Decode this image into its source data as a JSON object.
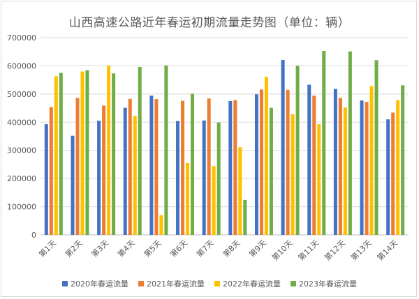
{
  "chart_data": {
    "type": "bar",
    "title": "山西高速公路近年春运初期流量走势图（单位：辆）",
    "categories": [
      "第1天",
      "第2天",
      "第3天",
      "第4天",
      "第5天",
      "第6天",
      "第7天",
      "第8天",
      "第9天",
      "第10天",
      "第11天",
      "第12天",
      "第13天",
      "第14天"
    ],
    "ylim": [
      0,
      700000
    ],
    "yticks": [
      0,
      100000,
      200000,
      300000,
      400000,
      500000,
      600000,
      700000
    ],
    "ytick_labels": [
      "0",
      "100000",
      "200000",
      "300000",
      "400000",
      "500000",
      "600000",
      "700000"
    ],
    "grid": true,
    "legend_position": "bottom",
    "series": [
      {
        "name": "2020年春运流量",
        "color": "#4472C4",
        "values": [
          393000,
          352000,
          405000,
          451000,
          494000,
          404000,
          406000,
          475000,
          499000,
          621000,
          533000,
          518000,
          477000,
          410000
        ]
      },
      {
        "name": "2021年春运流量",
        "color": "#ED7D31",
        "values": [
          453000,
          486000,
          459000,
          483000,
          482000,
          476000,
          484000,
          478000,
          516000,
          515000,
          494000,
          486000,
          472000,
          434000
        ]
      },
      {
        "name": "2022年春运流量",
        "color": "#FFC000",
        "values": [
          563000,
          580000,
          600000,
          422000,
          70000,
          255000,
          244000,
          311000,
          561000,
          428000,
          393000,
          452000,
          528000,
          478000
        ]
      },
      {
        "name": "2023年春运流量",
        "color": "#70AD47",
        "values": [
          575000,
          584000,
          573000,
          596000,
          601000,
          501000,
          399000,
          124000,
          451000,
          600000,
          653000,
          651000,
          620000,
          531000
        ]
      }
    ]
  }
}
